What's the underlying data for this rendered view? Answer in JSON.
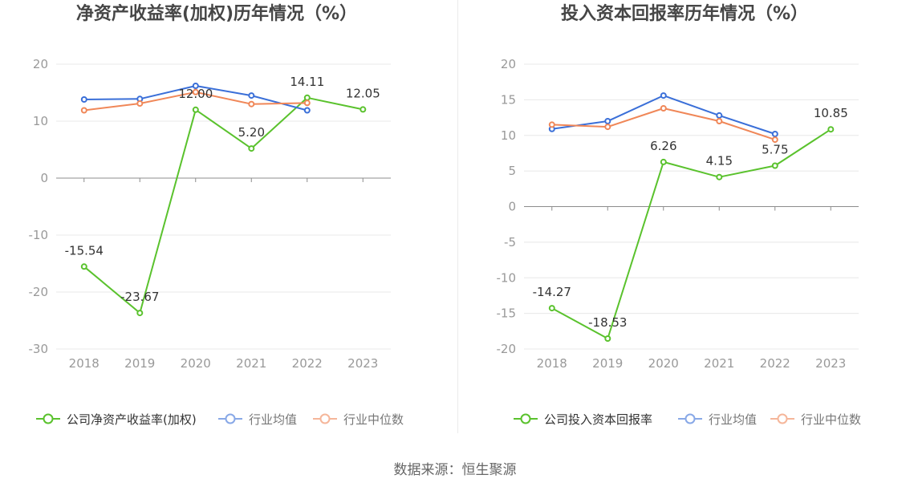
{
  "colors": {
    "company": "#5ac22d",
    "industry_average": "#3a6fd8",
    "industry_median": "#f08758",
    "grid": "#e8e8e8",
    "axis": "#8c8c8c"
  },
  "chart_data": [
    {
      "type": "line",
      "title": "净资产收益率(加权)历年情况（%）",
      "categories": [
        "2018",
        "2019",
        "2020",
        "2021",
        "2022",
        "2023"
      ],
      "ylim": [
        -30,
        20
      ],
      "yticks": [
        20,
        10,
        0,
        -10,
        -20,
        -30
      ],
      "grid": true,
      "legend_position": "bottom",
      "series": [
        {
          "name": "公司净资产收益率(加权)",
          "color": "#5ac22d",
          "values": [
            -15.54,
            -23.67,
            12.0,
            5.2,
            14.11,
            12.05
          ],
          "labels": [
            "-15.54",
            "-23.67",
            "12.00",
            "5.20",
            "14.11",
            "12.05"
          ]
        },
        {
          "name": "行业均值",
          "color": "#3a6fd8",
          "values": [
            13.8,
            13.9,
            16.2,
            14.5,
            11.9,
            null
          ]
        },
        {
          "name": "行业中位数",
          "color": "#f08758",
          "values": [
            11.9,
            13.1,
            15.1,
            13.0,
            13.2,
            null
          ]
        }
      ]
    },
    {
      "type": "line",
      "title": "投入资本回报率历年情况（%）",
      "categories": [
        "2018",
        "2019",
        "2020",
        "2021",
        "2022",
        "2023"
      ],
      "ylim": [
        -20,
        20
      ],
      "yticks": [
        20,
        15,
        10,
        5,
        0,
        -5,
        -10,
        -15,
        -20
      ],
      "grid": true,
      "legend_position": "bottom",
      "series": [
        {
          "name": "公司投入资本回报率",
          "color": "#5ac22d",
          "values": [
            -14.27,
            -18.53,
            6.26,
            4.15,
            5.75,
            10.85
          ],
          "labels": [
            "-14.27",
            "-18.53",
            "6.26",
            "4.15",
            "5.75",
            "10.85"
          ]
        },
        {
          "name": "行业均值",
          "color": "#3a6fd8",
          "values": [
            10.9,
            12.0,
            15.6,
            12.8,
            10.2,
            null
          ]
        },
        {
          "name": "行业中位数",
          "color": "#f08758",
          "values": [
            11.5,
            11.2,
            13.8,
            12.0,
            9.4,
            null
          ]
        }
      ]
    }
  ],
  "footer": {
    "source": "数据来源：恒生聚源"
  }
}
